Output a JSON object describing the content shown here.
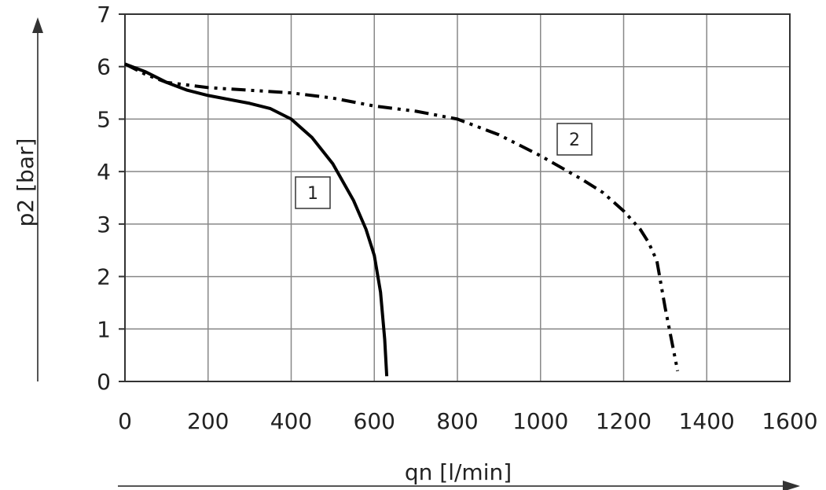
{
  "chart_data": {
    "type": "line",
    "xlabel": "qn [l/min]",
    "ylabel": "p2 [bar]",
    "xlim": [
      0,
      1600
    ],
    "ylim": [
      0,
      7
    ],
    "x_ticks": [
      "0",
      "200",
      "400",
      "600",
      "800",
      "1000",
      "1200",
      "1400",
      "1600"
    ],
    "y_ticks": [
      "0",
      "1",
      "2",
      "3",
      "4",
      "5",
      "6",
      "7"
    ],
    "grid": true,
    "series": [
      {
        "name": "1",
        "line_style": "solid",
        "color": "#000000",
        "x": [
          0,
          50,
          100,
          150,
          200,
          300,
          350,
          400,
          450,
          500,
          550,
          580,
          600,
          615,
          625,
          630
        ],
        "y": [
          6.05,
          5.9,
          5.7,
          5.55,
          5.45,
          5.3,
          5.2,
          5.0,
          4.65,
          4.15,
          3.45,
          2.9,
          2.4,
          1.7,
          0.8,
          0.1
        ]
      },
      {
        "name": "2",
        "line_style": "dashdotdot",
        "color": "#000000",
        "x": [
          0,
          50,
          100,
          200,
          300,
          400,
          500,
          600,
          700,
          800,
          900,
          1000,
          1100,
          1150,
          1200,
          1240,
          1260,
          1280,
          1300,
          1330
        ],
        "y": [
          6.05,
          5.85,
          5.7,
          5.6,
          5.55,
          5.5,
          5.4,
          5.25,
          5.15,
          5.0,
          4.7,
          4.3,
          3.85,
          3.6,
          3.25,
          2.9,
          2.65,
          2.3,
          1.4,
          0.2
        ]
      }
    ],
    "curve_labels": [
      "1",
      "2"
    ]
  }
}
